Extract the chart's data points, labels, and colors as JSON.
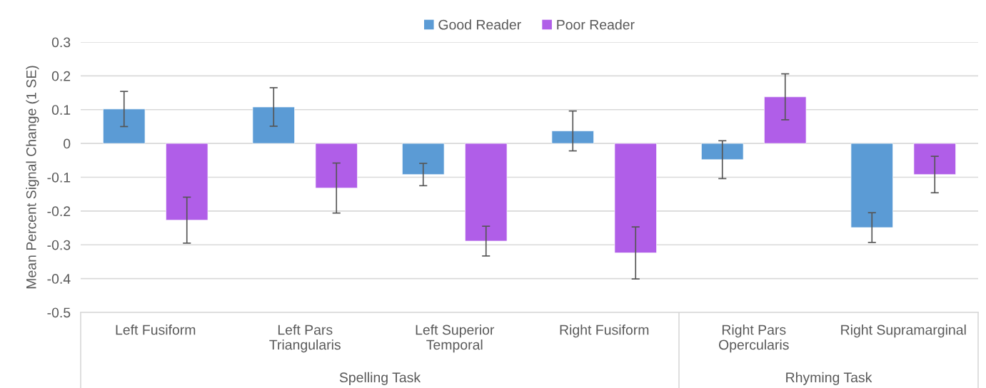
{
  "chart_data": {
    "type": "bar",
    "ylabel": "Mean Percent Signal Change (1 SE)",
    "categories": [
      "Left Fusiform",
      "Left Pars\nTriangularis",
      "Left Superior\nTemporal",
      "Right Fusiform",
      "Right Pars\nOpercularis",
      "Right Supramarginal"
    ],
    "series": [
      {
        "name": "Good Reader",
        "color": "#5b9bd5",
        "values": [
          0.102,
          0.108,
          -0.092,
          0.037,
          -0.048,
          -0.249
        ],
        "errors": [
          0.052,
          0.057,
          0.033,
          0.059,
          0.056,
          0.044
        ]
      },
      {
        "name": "Poor Reader",
        "color": "#b05ee8",
        "values": [
          -0.227,
          -0.132,
          -0.289,
          -0.324,
          0.138,
          -0.092
        ],
        "errors": [
          0.068,
          0.074,
          0.044,
          0.077,
          0.068,
          0.054
        ]
      }
    ],
    "ylim": [
      -0.5,
      0.3
    ],
    "yticks": [
      -0.5,
      -0.4,
      -0.3,
      -0.2,
      -0.1,
      0,
      0.1,
      0.2,
      0.3
    ],
    "grid": "y",
    "legend": "top",
    "annotations": [
      "Spelling Task",
      "Rhyming Task"
    ]
  }
}
